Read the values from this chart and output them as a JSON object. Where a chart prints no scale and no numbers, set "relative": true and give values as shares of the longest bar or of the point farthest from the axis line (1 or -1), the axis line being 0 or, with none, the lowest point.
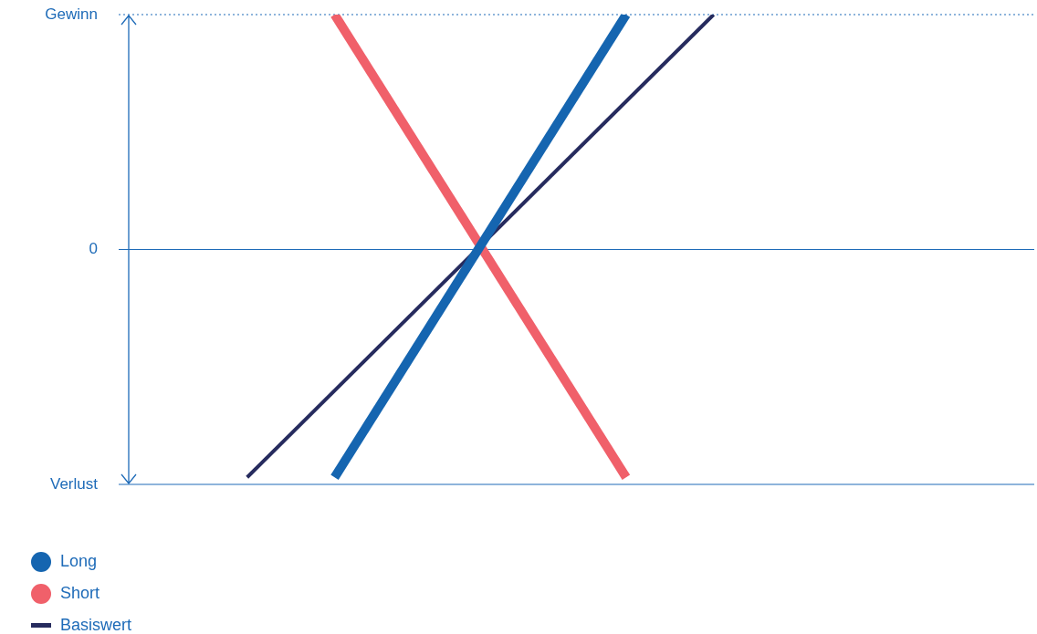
{
  "chart_data": {
    "type": "line",
    "relative": true,
    "categories": [
      null,
      null,
      null,
      null,
      null,
      null,
      null,
      null,
      null,
      null,
      null,
      null,
      null,
      null,
      null,
      null,
      null,
      null,
      null,
      null,
      null,
      null,
      null,
      null,
      null,
      null,
      null,
      null,
      null,
      null,
      null,
      null
    ],
    "series": [
      {
        "name": "Long",
        "color": "#1565b0",
        "values": [
          null,
          null,
          null,
          null,
          null,
          null,
          null,
          -0.97,
          null,
          null,
          null,
          null,
          null,
          null,
          null,
          null,
          null,
          1,
          null,
          null,
          null,
          null,
          null,
          null,
          null,
          null,
          null,
          null,
          null,
          null,
          null,
          null
        ]
      },
      {
        "name": "Short",
        "color": "#f0606a",
        "values": [
          null,
          null,
          null,
          null,
          null,
          null,
          null,
          1,
          null,
          null,
          null,
          null,
          null,
          null,
          null,
          null,
          null,
          -0.97,
          null,
          null,
          null,
          null,
          null,
          null,
          null,
          null,
          null,
          null,
          null,
          null,
          null,
          null
        ]
      },
      {
        "name": "Basiswert",
        "color": "#262b5e",
        "values": [
          null,
          null,
          null,
          null,
          -0.97,
          null,
          null,
          null,
          null,
          null,
          null,
          null,
          null,
          null,
          null,
          null,
          null,
          null,
          null,
          null,
          1,
          null,
          null,
          null,
          null,
          null,
          null,
          null,
          null,
          null,
          null,
          null
        ]
      }
    ],
    "ref_lines": [
      {
        "axis": "y",
        "value": 1,
        "label": "Gewinn",
        "line_style": "dotted"
      },
      {
        "axis": "y",
        "value": 0,
        "label": "0"
      },
      {
        "axis": "y",
        "value": -1,
        "label": "Verlust"
      }
    ],
    "tick_labels": false,
    "legend": "bottom left",
    "marker": "none",
    "line_style": "solid"
  }
}
